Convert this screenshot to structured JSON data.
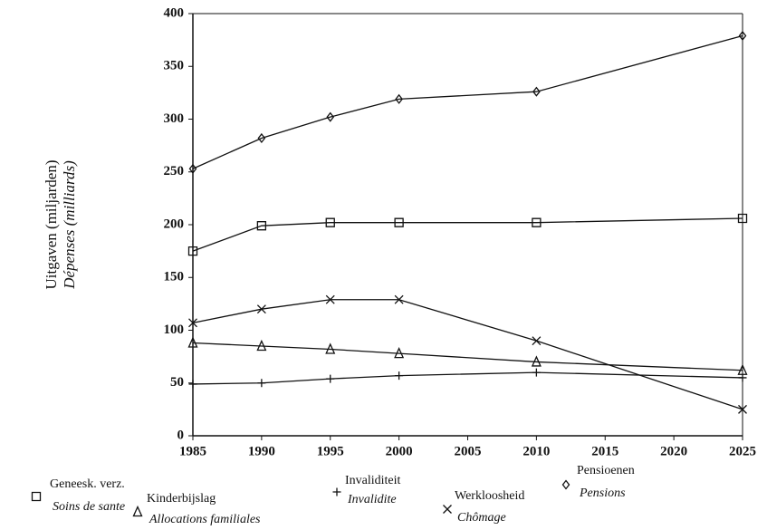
{
  "chart_data": {
    "type": "line",
    "y_label": "Uitgaven (miljarden)",
    "y_label_fr": "Dépenses (milliards)",
    "x": [
      1985,
      1990,
      1995,
      2000,
      2010,
      2025
    ],
    "xlim": [
      1985,
      2025
    ],
    "xticks": [
      1985,
      1990,
      1995,
      2000,
      2005,
      2010,
      2015,
      2020,
      2025
    ],
    "ylim": [
      0,
      400
    ],
    "yticks": [
      0,
      50,
      100,
      150,
      200,
      250,
      300,
      350,
      400
    ],
    "series": [
      {
        "name": "Geneesk. verz.",
        "name_fr": "Soins de sante",
        "color": "#111111",
        "marker": "square",
        "values": [
          175,
          199,
          202,
          202,
          202,
          206
        ]
      },
      {
        "name": "Kinderbijslag",
        "name_fr": "Allocations familiales",
        "color": "#111111",
        "marker": "triangle",
        "values": [
          88,
          85,
          82,
          78,
          70,
          62
        ]
      },
      {
        "name": "Invaliditeit",
        "name_fr": "Invalidite",
        "color": "#111111",
        "marker": "plus",
        "values": [
          49,
          50,
          54,
          57,
          60,
          55
        ]
      },
      {
        "name": "Werkloosheid",
        "name_fr": "Chômage",
        "color": "#111111",
        "marker": "cross",
        "values": [
          107,
          120,
          129,
          129,
          90,
          25
        ]
      },
      {
        "name": "Pensioenen",
        "name_fr": "Pensions",
        "color": "#111111",
        "marker": "diamond",
        "values": [
          253,
          282,
          302,
          319,
          326,
          379
        ]
      }
    ]
  }
}
